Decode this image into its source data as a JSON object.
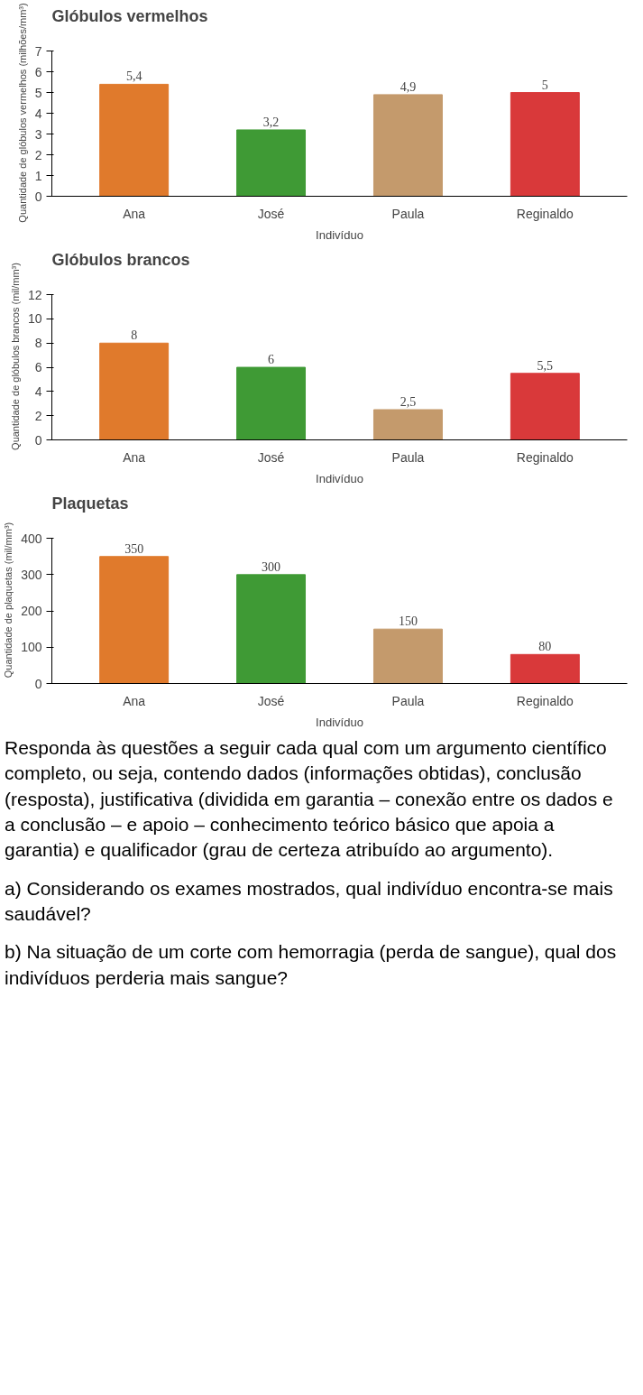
{
  "chart_data": [
    {
      "type": "bar",
      "title": "Glóbulos vermelhos",
      "ylabel": "Quantidade de glóbulos vermelhos (milhões/mm³)",
      "xlabel": "Indivíduo",
      "categories": [
        "Ana",
        "José",
        "Paula",
        "Reginaldo"
      ],
      "values": [
        5.4,
        3.2,
        4.9,
        5
      ],
      "colors": [
        "#e07a2c",
        "#3f9a35",
        "#c49a6c",
        "#d9393a"
      ],
      "value_labels": [
        "5,4",
        "3,2",
        "4,9",
        "5"
      ],
      "ylim": [
        0,
        7
      ],
      "yticks": [
        0,
        1,
        2,
        3,
        4,
        5,
        6,
        7
      ]
    },
    {
      "type": "bar",
      "title": "Glóbulos brancos",
      "ylabel": "Quantidade de glóbulos brancos (mil/mm³)",
      "xlabel": "Indivíduo",
      "categories": [
        "Ana",
        "José",
        "Paula",
        "Reginaldo"
      ],
      "values": [
        8,
        6,
        2.5,
        5.5
      ],
      "colors": [
        "#e07a2c",
        "#3f9a35",
        "#c49a6c",
        "#d9393a"
      ],
      "value_labels": [
        "8",
        "6",
        "2,5",
        "5,5"
      ],
      "ylim": [
        0,
        12
      ],
      "yticks": [
        0,
        2,
        4,
        6,
        8,
        10,
        12
      ]
    },
    {
      "type": "bar",
      "title": "Plaquetas",
      "ylabel": "Quantidade de plaquetas (mil/mm³)",
      "xlabel": "Indivíduo",
      "categories": [
        "Ana",
        "José",
        "Paula",
        "Reginaldo"
      ],
      "values": [
        350,
        300,
        150,
        80
      ],
      "colors": [
        "#e07a2c",
        "#3f9a35",
        "#c49a6c",
        "#d9393a"
      ],
      "value_labels": [
        "350",
        "300",
        "150",
        "80"
      ],
      "ylim": [
        0,
        400
      ],
      "yticks": [
        0,
        100,
        200,
        300,
        400
      ]
    },
    {
      "type": "other",
      "annotations": [
        "Responda às questões a seguir cada qual com um argumento científico completo, ou seja, contendo dados (informações obtidas), conclusão (resposta), justificativa (dividida em garantia – conexão entre os dados e a conclusão – e apoio – conhecimento teórico básico que apoia a garantia) e qualificador (grau de certeza atribuído ao argumento).",
        "a) Considerando os exames mostrados, qual indivíduo encontra-se mais saudável?",
        "b) Na situação de um corte com hemorragia (perda de sangue), qual dos indivíduos perderia mais sangue?"
      ]
    }
  ]
}
